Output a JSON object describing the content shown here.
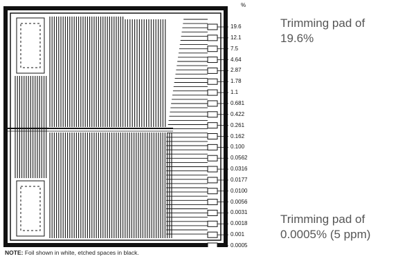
{
  "header": {
    "percent_symbol": "%"
  },
  "trim_values": [
    "19.6",
    "12.1",
    "7.5",
    "4.64",
    "2.87",
    "1.78",
    "1.1",
    "0.681",
    "0.422",
    "0.261",
    "0.162",
    "0.100",
    "0.0562",
    "0.0316",
    "0.0177",
    "0.0100",
    "0.0056",
    "0.0031",
    "0.0018",
    "0.001",
    "0.0005"
  ],
  "callouts": {
    "top": {
      "line1": "Trimming pad of",
      "line2": "19.6%"
    },
    "bottom": {
      "line1": "Trimming pad of",
      "line2": "0.0005% (5 ppm)"
    }
  },
  "note": {
    "label": "NOTE:",
    "text": "Foil shown in white, etched spaces in black."
  },
  "colors": {
    "foil": "#ffffff",
    "etch": "#111111",
    "callout_text": "#555555"
  }
}
